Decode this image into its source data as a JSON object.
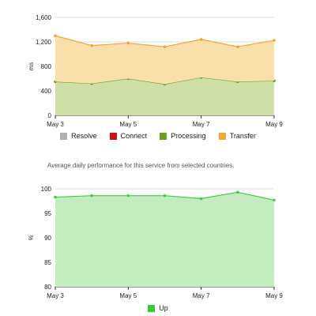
{
  "description": "Average daily performance for this service from selected countries.",
  "chart_data": [
    {
      "type": "area",
      "stacked": true,
      "x": [
        "May 3",
        "May 4",
        "May 5",
        "May 6",
        "May 7",
        "May 8",
        "May 9"
      ],
      "x_tick_labels": [
        "May 3",
        "May 5",
        "May 7",
        "May 9"
      ],
      "ylabel": "ms",
      "ylim": [
        0,
        1600
      ],
      "y_ticks": [
        0,
        400,
        800,
        1200,
        1600
      ],
      "y_tick_labels": [
        "0",
        "400",
        "800",
        "1,200",
        "1,600"
      ],
      "grid": true,
      "legend_position": "bottom",
      "legend": [
        {
          "name": "Resolve",
          "color": "#b0b0b0"
        },
        {
          "name": "Connect",
          "color": "#cc1111"
        },
        {
          "name": "Processing",
          "color": "#6aa020"
        },
        {
          "name": "Transfer",
          "color": "#f0a830"
        }
      ],
      "series": [
        {
          "name": "Resolve",
          "color": "#b0b0b0",
          "values": [
            0,
            0,
            0,
            0,
            0,
            0,
            0
          ]
        },
        {
          "name": "Connect",
          "color": "#cc1111",
          "values": [
            0,
            0,
            0,
            0,
            0,
            0,
            0
          ]
        },
        {
          "name": "Processing",
          "color": "#6aa020",
          "fill": "#cfe0a6",
          "values": [
            550,
            520,
            600,
            510,
            620,
            550,
            565
          ]
        },
        {
          "name": "Transfer",
          "color": "#f0a830",
          "fill": "#f9dfaa",
          "values": [
            750,
            620,
            580,
            610,
            620,
            570,
            660
          ]
        }
      ]
    },
    {
      "type": "area",
      "x": [
        "May 3",
        "May 4",
        "May 5",
        "May 6",
        "May 7",
        "May 8",
        "May 9"
      ],
      "x_tick_labels": [
        "May 3",
        "May 5",
        "May 7",
        "May 9"
      ],
      "ylabel": "%",
      "ylim": [
        80,
        100
      ],
      "y_ticks": [
        80,
        85,
        90,
        95,
        100
      ],
      "y_tick_labels": [
        "80",
        "85",
        "90",
        "95",
        "100"
      ],
      "grid": true,
      "legend_position": "bottom",
      "legend": [
        {
          "name": "Up",
          "color": "#33cc33"
        }
      ],
      "series": [
        {
          "name": "Up",
          "color": "#44cc44",
          "fill": "#c4ecc0",
          "values": [
            98.3,
            98.6,
            98.6,
            98.6,
            98.0,
            99.3,
            97.7
          ]
        }
      ]
    }
  ]
}
